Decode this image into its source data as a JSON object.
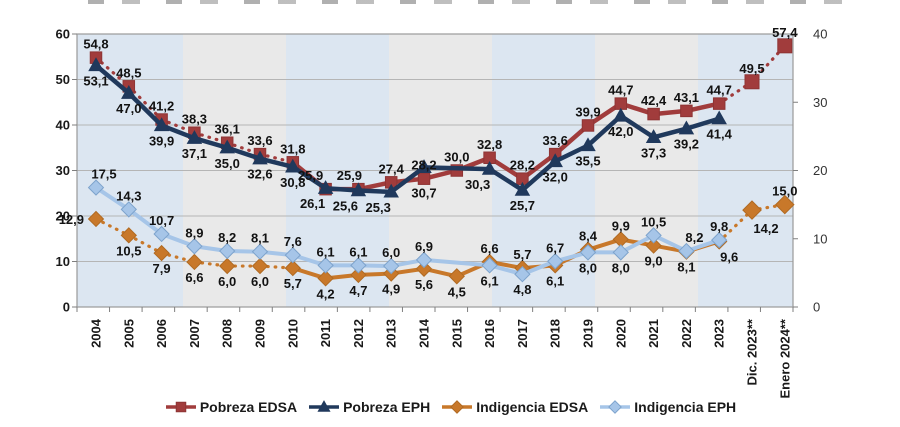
{
  "chart_data": {
    "type": "line",
    "title": "",
    "categories": [
      "2004",
      "2005",
      "2006",
      "2007",
      "2008",
      "2009",
      "2010",
      "2011",
      "2012",
      "2013",
      "2014",
      "2015",
      "2016",
      "2017",
      "2018",
      "2019",
      "2020",
      "2021",
      "2022",
      "2023",
      "Dic. 2023**",
      "Enero 2024**"
    ],
    "left_axis": {
      "label": "",
      "min": 0,
      "max": 60,
      "ticks": [
        0,
        10,
        20,
        30,
        40,
        50,
        60
      ]
    },
    "right_axis": {
      "label": "",
      "min": 0,
      "max": 40,
      "ticks": [
        0,
        10,
        20,
        30,
        40
      ]
    },
    "grid": true,
    "legend_position": "bottom",
    "band_colors": [
      "#dce6f1",
      "#e9e9e9"
    ],
    "band_bounds": [
      77,
      183,
      286,
      389,
      492,
      595,
      698,
      793
    ],
    "series": [
      {
        "name": "Pobreza EDSA",
        "axis": "left",
        "color": "#A13C3C",
        "marker": "square",
        "marker_border": "#8E3434",
        "line_width": 4.5,
        "values": [
          54.8,
          48.5,
          41.2,
          38.3,
          36.1,
          33.6,
          31.8,
          25.9,
          25.9,
          27.4,
          28.2,
          30.0,
          32.8,
          28.2,
          33.6,
          39.9,
          44.7,
          42.4,
          43.1,
          44.7,
          49.5,
          57.4
        ],
        "dotted_ranges": [
          [
            0,
            6
          ],
          [
            19,
            21
          ]
        ],
        "big_marker_indices": [
          20,
          21
        ],
        "label_side": "a",
        "side_overrides": {},
        "label_dx": {
          "7": -15,
          "8": -9
        },
        "label_dy": {}
      },
      {
        "name": "Pobreza EPH",
        "axis": "left",
        "color": "#20395C",
        "marker": "triangle",
        "marker_border": "#20395C",
        "line_width": 4.5,
        "values": [
          53.1,
          47.0,
          39.9,
          37.1,
          35.0,
          32.6,
          30.8,
          26.1,
          25.6,
          25.3,
          30.7,
          null,
          30.3,
          25.7,
          32.0,
          35.5,
          42.0,
          37.3,
          39.2,
          41.4,
          null,
          null
        ],
        "dotted_ranges": [],
        "big_marker_indices": [],
        "label_side": "b",
        "side_overrides": {},
        "label_dx": {
          "7": -13,
          "8": -13,
          "9": -13,
          "12": -12
        },
        "label_dy": {
          "10": 10
        }
      },
      {
        "name": "Indigencia EDSA",
        "axis": "right",
        "color": "#C8782A",
        "marker": "diamond",
        "marker_border": "#B06A22",
        "line_width": 4,
        "values": [
          12.9,
          10.5,
          7.9,
          6.6,
          6.0,
          6.0,
          5.7,
          4.2,
          4.7,
          4.9,
          5.6,
          4.5,
          6.6,
          5.7,
          6.1,
          8.4,
          9.9,
          9.0,
          8.1,
          9.6,
          14.2,
          15.0
        ],
        "dotted_ranges": [
          [
            0,
            6
          ],
          [
            19,
            21
          ]
        ],
        "big_marker_indices": [
          20,
          21
        ],
        "label_side": "b",
        "side_overrides": {
          "0": "l",
          "12": "a",
          "13": "a",
          "15": "a",
          "16": "a",
          "21": "a"
        },
        "label_dx": {
          "19": 10,
          "20": 14
        },
        "label_dy": {
          "20": 3
        }
      },
      {
        "name": "Indigencia EPH",
        "axis": "right",
        "color": "#A6C5E8",
        "marker": "diamond",
        "marker_border": "#7DA3CC",
        "line_width": 4,
        "values": [
          17.5,
          14.3,
          10.7,
          8.9,
          8.2,
          8.1,
          7.6,
          6.1,
          6.1,
          6.0,
          6.9,
          null,
          6.1,
          4.8,
          6.7,
          8.0,
          8.0,
          10.5,
          8.2,
          9.8,
          null,
          null
        ],
        "dotted_ranges": [],
        "big_marker_indices": [],
        "label_side": "a",
        "side_overrides": {
          "12": "b",
          "13": "b",
          "15": "b",
          "16": "b"
        },
        "label_dx": {
          "0": 8,
          "18": 8
        },
        "label_dy": {}
      }
    ]
  }
}
